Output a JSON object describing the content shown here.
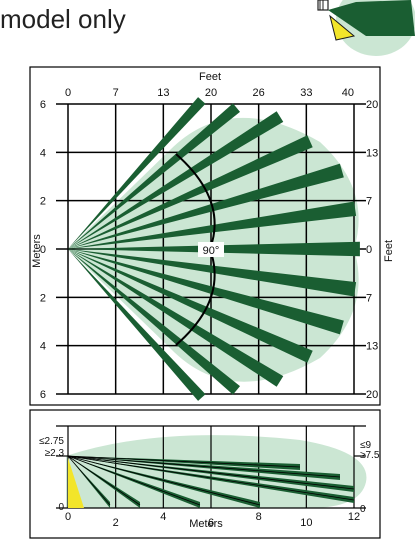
{
  "heading": {
    "text": "model only"
  },
  "top_view": {
    "top_axis": {
      "label": "Feet",
      "ticks": [
        "0",
        "7",
        "13",
        "20",
        "26",
        "33",
        "40"
      ]
    },
    "left_axis": {
      "label": "Meters",
      "ticks": [
        "6",
        "4",
        "2",
        "0",
        "2",
        "4",
        "6"
      ]
    },
    "right_axis": {
      "label": "Feet",
      "ticks": [
        "20",
        "13",
        "7",
        "0",
        "7",
        "13",
        "20"
      ]
    },
    "angle_label": "90°"
  },
  "side_view": {
    "left_ticks": [
      "≤2.75",
      "≥2.3",
      "0"
    ],
    "right_ticks": [
      "≤9",
      "≥7.5",
      "0"
    ],
    "bottom_axis": {
      "label": "Meters",
      "ticks": [
        "0",
        "2",
        "4",
        "6",
        "8",
        "10",
        "12"
      ]
    }
  },
  "colors": {
    "coverage": "#cbe6d3",
    "beam": "#1a5e32",
    "creep_zone": "#f2e52a",
    "grid": "#000000"
  }
}
